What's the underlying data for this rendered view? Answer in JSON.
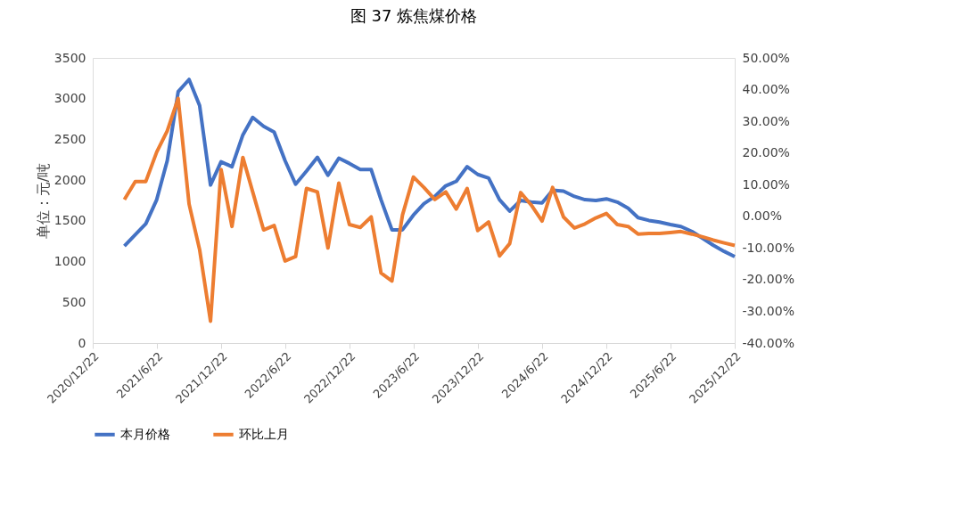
{
  "chart_data": {
    "type": "line",
    "title": "图 37 炼焦煤价格",
    "ylabel": "单位：元/吨",
    "x": [
      "2021-03-22",
      "2021-04-22",
      "2021-05-22",
      "2021-06-22",
      "2021-07-22",
      "2021-08-22",
      "2021-09-22",
      "2021-10-22",
      "2021-11-22",
      "2021-12-22",
      "2022-01-22",
      "2022-02-22",
      "2022-03-22",
      "2022-04-22",
      "2022-05-22",
      "2022-06-22",
      "2022-07-22",
      "2022-08-22",
      "2022-09-22",
      "2022-10-22",
      "2022-11-22",
      "2022-12-22",
      "2023-01-22",
      "2023-02-22",
      "2023-03-22",
      "2023-04-22",
      "2023-05-22",
      "2023-06-22",
      "2023-07-22",
      "2023-08-22",
      "2023-09-22",
      "2023-10-22",
      "2023-11-22",
      "2023-12-22",
      "2024-01-22",
      "2024-02-22",
      "2024-03-22",
      "2024-04-22",
      "2024-05-22",
      "2024-06-22",
      "2024-07-22",
      "2024-08-22",
      "2024-09-22",
      "2024-10-22",
      "2024-11-22",
      "2024-12-22",
      "2025-01-22",
      "2025-02-22",
      "2025-03-22",
      "2025-04-22",
      "2025-05-22",
      "2025-06-22",
      "2025-07-22",
      "2025-08-22",
      "2025-09-22",
      "2025-10-22",
      "2025-11-22",
      "2025-12-22"
    ],
    "series": [
      {
        "name": "本月价格",
        "color": "#4472c4",
        "values": [
          1190,
          1330,
          1465,
          1760,
          2240,
          3085,
          3235,
          2915,
          1940,
          2225,
          2165,
          2555,
          2770,
          2660,
          2590,
          2240,
          1950,
          2110,
          2280,
          2060,
          2270,
          2205,
          2130,
          2130,
          1760,
          1390,
          1390,
          1570,
          1710,
          1800,
          1930,
          1985,
          2165,
          2070,
          2025,
          1760,
          1620,
          1750,
          1730,
          1720,
          1875,
          1865,
          1800,
          1760,
          1750,
          1770,
          1730,
          1655,
          1540,
          1505,
          1485,
          1455,
          1430,
          1370,
          1285,
          1200,
          1125,
          1060
        ]
      },
      {
        "name": "环比上月",
        "color": "#ed7d31",
        "axis": "y2",
        "values": [
          5.3,
          11,
          11,
          20.3,
          27,
          37.2,
          3.9,
          -10.5,
          -33.1,
          14.8,
          -3.2,
          18.6,
          7.7,
          -4.3,
          -2.9,
          -14.1,
          -12.7,
          8.8,
          7.7,
          -10,
          10.5,
          -2.6,
          -3.5,
          -0.2,
          -17.9,
          -20.4,
          0.4,
          12.4,
          9.1,
          5.3,
          7.7,
          2.3,
          8.8,
          -4.5,
          -1.8,
          -12.5,
          -8.6,
          7.5,
          3.6,
          -1.5,
          9.1,
          -0.2,
          -3.7,
          -2.4,
          -0.5,
          0.9,
          -2.6,
          -3.2,
          -5.6,
          -5.4,
          -5.4,
          -5.1,
          -4.8,
          -5.6,
          -6.5,
          -7.5,
          -8.4,
          -9.2
        ]
      }
    ],
    "xlim": [
      "2020-12-22",
      "2025-12-22"
    ],
    "xticks": [
      {
        "value": "2020-12-22",
        "label": "2020/12/22"
      },
      {
        "value": "2021-06-22",
        "label": "2021/6/22"
      },
      {
        "value": "2021-12-22",
        "label": "2021/12/22"
      },
      {
        "value": "2022-06-22",
        "label": "2022/6/22"
      },
      {
        "value": "2022-12-22",
        "label": "2022/12/22"
      },
      {
        "value": "2023-06-22",
        "label": "2023/6/22"
      },
      {
        "value": "2023-12-22",
        "label": "2023/12/22"
      },
      {
        "value": "2024-06-22",
        "label": "2024/6/22"
      },
      {
        "value": "2024-12-22",
        "label": "2024/12/22"
      },
      {
        "value": "2025-06-22",
        "label": "2025/6/22"
      },
      {
        "value": "2025-12-22",
        "label": "2025/12/22"
      }
    ],
    "ylim": [
      0,
      3500
    ],
    "yticks": [
      0,
      500,
      1000,
      1500,
      2000,
      2500,
      3000,
      3500
    ],
    "y2lim": [
      -40,
      50
    ],
    "y2ticks": [
      {
        "value": -40,
        "label": "-40.00%"
      },
      {
        "value": -30,
        "label": "-30.00%"
      },
      {
        "value": -20,
        "label": "-20.00%"
      },
      {
        "value": -10,
        "label": "-10.00%"
      },
      {
        "value": 0,
        "label": "0.00%"
      },
      {
        "value": 10,
        "label": "10.00%"
      },
      {
        "value": 20,
        "label": "20.00%"
      },
      {
        "value": 30,
        "label": "30.00%"
      },
      {
        "value": 40,
        "label": "40.00%"
      },
      {
        "value": 50,
        "label": "50.00%"
      }
    ],
    "grid": false,
    "legend": "bottom",
    "marker": "none",
    "line_style": "solid"
  }
}
